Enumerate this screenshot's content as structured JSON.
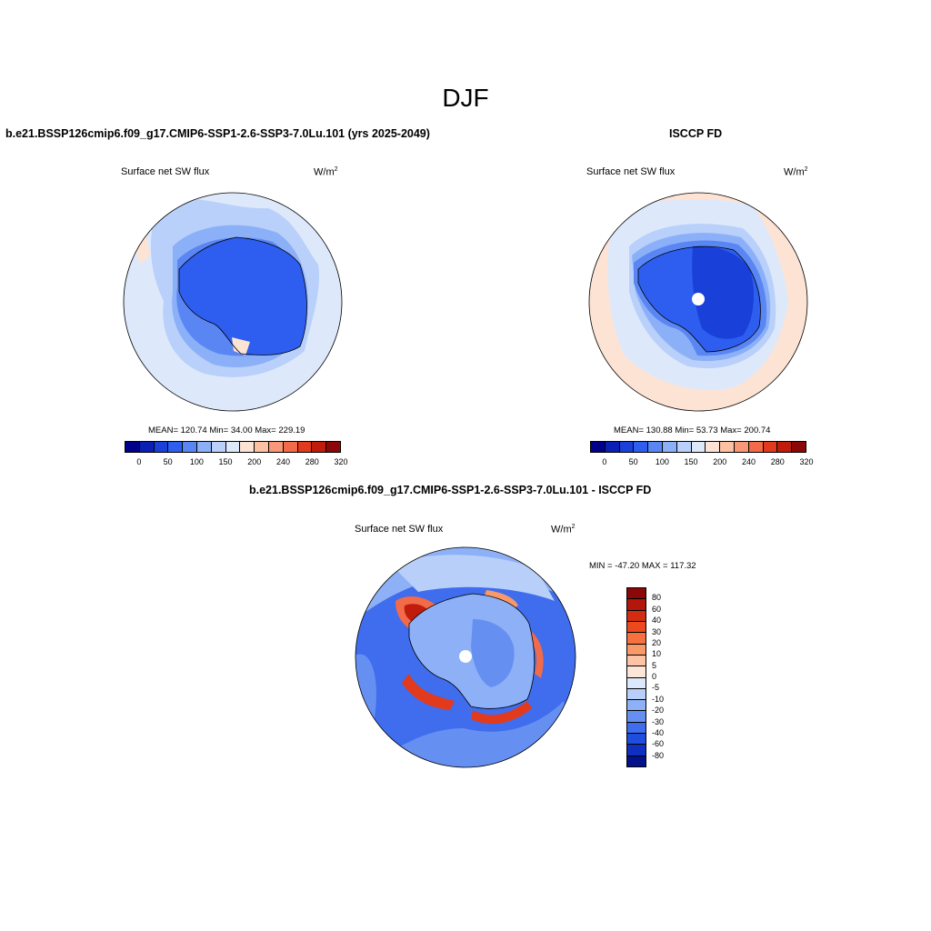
{
  "figure": {
    "title": "DJF"
  },
  "panels": {
    "model": {
      "title": "b.e21.BSSP126cmip6.f09_g17.CMIP6-SSP1-2.6-SSP3-7.0Lu.101 (yrs 2025-2049)",
      "variable": "Surface net SW flux",
      "units": "W/m",
      "units_sup": "2",
      "stats": "MEAN= 120.74  Min=  34.00  Max= 229.19"
    },
    "obs": {
      "title": "ISCCP FD",
      "variable": "Surface net SW flux",
      "units": "W/m",
      "units_sup": "2",
      "stats": "MEAN= 130.88  Min=  53.73  Max= 200.74"
    },
    "diff": {
      "title": "b.e21.BSSP126cmip6.f09_g17.CMIP6-SSP1-2.6-SSP3-7.0Lu.101 - ISCCP FD",
      "variable": "Surface net SW flux",
      "units": "W/m",
      "units_sup": "2",
      "stats": "MIN = -47.20 MAX = 117.32"
    }
  },
  "colorbar_abs": {
    "colors": [
      "#00008b",
      "#0a1fb4",
      "#1940d8",
      "#2e5ef0",
      "#5a86f4",
      "#8cb0f8",
      "#b8d0fa",
      "#dde9fb",
      "#fde3d4",
      "#fcc0a3",
      "#f89878",
      "#f26a47",
      "#e23a1c",
      "#c01c0c",
      "#8c0808"
    ],
    "labels": [
      "0",
      "50",
      "100",
      "150",
      "200",
      "240",
      "280",
      "320"
    ]
  },
  "colorbar_diff": {
    "colors": [
      "#8c0808",
      "#b3160a",
      "#d22d10",
      "#ec4a1e",
      "#f6713f",
      "#f99868",
      "#fcc4a4",
      "#fde6d8",
      "#dce8fb",
      "#b8cffa",
      "#8db0f6",
      "#6590f2",
      "#3f6ded",
      "#1f4ede",
      "#0f2fc0",
      "#03128c"
    ],
    "labels": [
      "80",
      "60",
      "40",
      "30",
      "20",
      "10",
      "5",
      "0",
      "-5",
      "-10",
      "-20",
      "-30",
      "-40",
      "-60",
      "-80"
    ]
  },
  "chart_data": [
    {
      "type": "heatmap",
      "title": "b.e21.BSSP126cmip6.f09_g17.CMIP6-SSP1-2.6-SSP3-7.0Lu.101 (yrs 2025-2049)",
      "variable": "Surface net SW flux",
      "units": "W/m2",
      "season": "DJF",
      "projection": "south polar stereographic",
      "levels": [
        0,
        25,
        50,
        75,
        100,
        125,
        150,
        175,
        200,
        220,
        240,
        260,
        280,
        300,
        320
      ],
      "mean": 120.74,
      "min": 34.0,
      "max": 229.19
    },
    {
      "type": "heatmap",
      "title": "ISCCP FD",
      "variable": "Surface net SW flux",
      "units": "W/m2",
      "season": "DJF",
      "projection": "south polar stereographic",
      "levels": [
        0,
        25,
        50,
        75,
        100,
        125,
        150,
        175,
        200,
        220,
        240,
        260,
        280,
        300,
        320
      ],
      "mean": 130.88,
      "min": 53.73,
      "max": 200.74
    },
    {
      "type": "heatmap",
      "title": "b.e21.BSSP126cmip6.f09_g17.CMIP6-SSP1-2.6-SSP3-7.0Lu.101 - ISCCP FD",
      "variable": "Surface net SW flux",
      "units": "W/m2",
      "season": "DJF",
      "projection": "south polar stereographic",
      "levels": [
        -80,
        -60,
        -40,
        -30,
        -20,
        -10,
        -5,
        0,
        5,
        10,
        20,
        30,
        40,
        60,
        80
      ],
      "min": -47.2,
      "max": 117.32
    }
  ]
}
